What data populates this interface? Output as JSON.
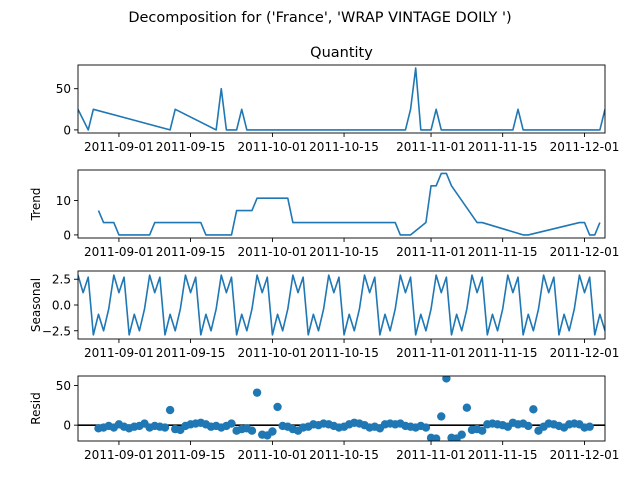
{
  "figure": {
    "suptitle": "Decomposition for ('France', 'WRAP  VINTAGE DOILY ')"
  },
  "colors": {
    "line": "#1f77b4",
    "axis": "#000000",
    "zero_line": "#000000",
    "background": "#ffffff"
  },
  "chart_data": [
    {
      "type": "line",
      "title": "Quantity",
      "ylabel": "",
      "xlim": [
        "2011-08-24",
        "2011-12-05"
      ],
      "ylim": [
        -3.75,
        78.75
      ],
      "yticks": [
        0,
        50
      ],
      "xticks": [
        "2011-09-01",
        "2011-09-15",
        "2011-10-01",
        "2011-10-15",
        "2011-11-01",
        "2011-11-15",
        "2011-12-01"
      ],
      "series": [
        {
          "x": [
            "2011-08-24",
            "2011-08-26",
            "2011-08-27",
            "2011-09-11",
            "2011-09-12",
            "2011-09-20",
            "2011-09-21",
            "2011-09-22",
            "2011-09-24",
            "2011-09-25",
            "2011-09-26",
            "2011-10-27",
            "2011-10-28",
            "2011-10-29",
            "2011-10-30",
            "2011-11-01",
            "2011-11-02",
            "2011-11-03",
            "2011-11-04",
            "2011-11-05",
            "2011-11-17",
            "2011-11-18",
            "2011-11-19",
            "2011-12-04",
            "2011-12-05"
          ],
          "values": [
            25,
            0,
            25,
            0,
            25,
            0,
            50,
            0,
            0,
            25,
            0,
            0,
            25,
            75,
            0,
            0,
            25,
            0,
            0,
            0,
            0,
            25,
            0,
            0,
            25
          ]
        }
      ]
    },
    {
      "type": "line",
      "ylabel": "Trend",
      "xlim": [
        "2011-08-24",
        "2011-12-05"
      ],
      "ylim": [
        -0.9,
        18.9
      ],
      "yticks": [
        0,
        10
      ],
      "xticks": [
        "2011-09-01",
        "2011-09-15",
        "2011-10-01",
        "2011-10-15",
        "2011-11-01",
        "2011-11-15",
        "2011-12-01"
      ],
      "series": [
        {
          "x": [
            "2011-08-28",
            "2011-08-29",
            "2011-08-31",
            "2011-09-01",
            "2011-09-07",
            "2011-09-08",
            "2011-09-17",
            "2011-09-18",
            "2011-09-23",
            "2011-09-24",
            "2011-09-27",
            "2011-09-28",
            "2011-10-04",
            "2011-10-05",
            "2011-10-25",
            "2011-10-26",
            "2011-10-27",
            "2011-10-28",
            "2011-10-31",
            "2011-11-01",
            "2011-11-02",
            "2011-11-03",
            "2011-11-04",
            "2011-11-05",
            "2011-11-10",
            "2011-11-11",
            "2011-11-19",
            "2011-11-20",
            "2011-11-30",
            "2011-12-01",
            "2011-12-02",
            "2011-12-03",
            "2011-12-04"
          ],
          "values": [
            7.1,
            3.6,
            3.6,
            0.0,
            0.0,
            3.6,
            3.6,
            0.0,
            0.0,
            7.1,
            7.1,
            10.7,
            10.7,
            3.6,
            3.6,
            0.0,
            0.0,
            0.0,
            3.6,
            14.3,
            14.3,
            17.9,
            17.9,
            14.3,
            3.6,
            3.6,
            0.0,
            0.0,
            3.6,
            3.6,
            0.0,
            0.0,
            3.6
          ]
        }
      ]
    },
    {
      "type": "line",
      "ylabel": "Seasonal",
      "xlim": [
        "2011-08-24",
        "2011-12-05"
      ],
      "ylim": [
        -3.3,
        3.3
      ],
      "yticks": [
        2.5,
        0.0,
        -2.5
      ],
      "ytick_labels": [
        "2.5",
        "0.0",
        "−2.5"
      ],
      "xticks": [
        "2011-09-01",
        "2011-09-15",
        "2011-10-01",
        "2011-10-15",
        "2011-11-01",
        "2011-11-15",
        "2011-12-01"
      ],
      "period_days": 7,
      "pattern_start": "2011-08-24",
      "pattern_values": [
        2.9,
        1.2,
        2.7,
        -2.9,
        -0.9,
        -2.5,
        -0.4
      ]
    },
    {
      "type": "scatter",
      "ylabel": "Resid",
      "xlim": [
        "2011-08-24",
        "2011-12-05"
      ],
      "ylim": [
        -20,
        62
      ],
      "yticks": [
        0,
        50
      ],
      "zero_line": 0,
      "xticks": [
        "2011-09-01",
        "2011-09-15",
        "2011-10-01",
        "2011-10-15",
        "2011-11-01",
        "2011-11-15",
        "2011-12-01"
      ],
      "series": [
        {
          "x": [
            "2011-08-28",
            "2011-08-29",
            "2011-08-30",
            "2011-08-31",
            "2011-09-01",
            "2011-09-02",
            "2011-09-03",
            "2011-09-04",
            "2011-09-05",
            "2011-09-06",
            "2011-09-07",
            "2011-09-08",
            "2011-09-09",
            "2011-09-10",
            "2011-09-11",
            "2011-09-12",
            "2011-09-13",
            "2011-09-14",
            "2011-09-15",
            "2011-09-16",
            "2011-09-17",
            "2011-09-18",
            "2011-09-19",
            "2011-09-20",
            "2011-09-21",
            "2011-09-22",
            "2011-09-23",
            "2011-09-24",
            "2011-09-25",
            "2011-09-26",
            "2011-09-27",
            "2011-09-28",
            "2011-09-29",
            "2011-09-30",
            "2011-10-01",
            "2011-10-02",
            "2011-10-03",
            "2011-10-04",
            "2011-10-05",
            "2011-10-06",
            "2011-10-07",
            "2011-10-08",
            "2011-10-09",
            "2011-10-10",
            "2011-10-11",
            "2011-10-12",
            "2011-10-13",
            "2011-10-14",
            "2011-10-15",
            "2011-10-16",
            "2011-10-17",
            "2011-10-18",
            "2011-10-19",
            "2011-10-20",
            "2011-10-21",
            "2011-10-22",
            "2011-10-23",
            "2011-10-24",
            "2011-10-25",
            "2011-10-26",
            "2011-10-27",
            "2011-10-28",
            "2011-10-29",
            "2011-10-30",
            "2011-10-31",
            "2011-11-01",
            "2011-11-02",
            "2011-11-03",
            "2011-11-04",
            "2011-11-05",
            "2011-11-06",
            "2011-11-07",
            "2011-11-08",
            "2011-11-09",
            "2011-11-10",
            "2011-11-11",
            "2011-11-12",
            "2011-11-13",
            "2011-11-14",
            "2011-11-15",
            "2011-11-16",
            "2011-11-17",
            "2011-11-18",
            "2011-11-19",
            "2011-11-20",
            "2011-11-21",
            "2011-11-22",
            "2011-11-23",
            "2011-11-24",
            "2011-11-25",
            "2011-11-26",
            "2011-11-27",
            "2011-11-28",
            "2011-11-29",
            "2011-11-30",
            "2011-12-01",
            "2011-12-02"
          ],
          "values": [
            -4,
            -3,
            -1,
            -3,
            1,
            -2,
            -4,
            -2,
            -1,
            2,
            -3,
            -1,
            -2,
            -3,
            19,
            -5,
            -6,
            -1,
            1,
            2,
            3,
            1,
            -2,
            -1,
            -3,
            -1,
            2,
            -7,
            -5,
            -4,
            -7,
            41,
            -12,
            -13,
            -8,
            23,
            -1,
            -2,
            -5,
            -7,
            -3,
            -2,
            1,
            0,
            2,
            1,
            -1,
            -3,
            -2,
            1,
            3,
            2,
            0,
            -3,
            -2,
            -4,
            1,
            2,
            1,
            2,
            -1,
            -2,
            -3,
            -1,
            -3,
            -16,
            -17,
            11,
            59,
            -16,
            -17,
            -12,
            22,
            -6,
            -5,
            -7,
            1,
            2,
            1,
            0,
            -2,
            3,
            1,
            2,
            -1,
            20,
            -7,
            -2,
            2,
            1,
            -1,
            -3,
            1,
            2,
            1,
            -3,
            -2
          ]
        }
      ]
    }
  ]
}
